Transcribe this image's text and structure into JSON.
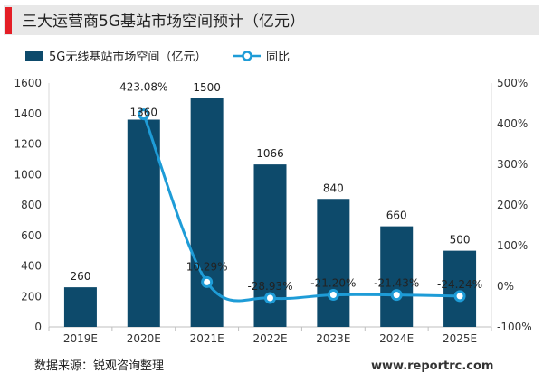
{
  "chart_data": {
    "type": "bar",
    "title": "三大运营商5G基站市场空间预计（亿元）",
    "categories": [
      "2019E",
      "2020E",
      "2021E",
      "2022E",
      "2023E",
      "2024E",
      "2025E"
    ],
    "series": [
      {
        "name": "5G无线基站市场空间（亿元）",
        "type": "bar",
        "axis": "left",
        "values": [
          260,
          1360,
          1500,
          1066,
          840,
          660,
          500
        ],
        "labels": [
          "260",
          "1360",
          "1500",
          "1066",
          "840",
          "660",
          "500"
        ]
      },
      {
        "name": "同比",
        "type": "line",
        "axis": "right",
        "values": [
          null,
          423.08,
          10.29,
          -28.93,
          -21.2,
          -21.43,
          -24.24
        ],
        "labels": [
          "",
          "423.08%",
          "10.29%",
          "-28.93%",
          "-21.20%",
          "-21.43%",
          "-24.24%"
        ]
      }
    ],
    "y_left": {
      "min": 0,
      "max": 1600,
      "ticks": [
        "0",
        "200",
        "400",
        "600",
        "800",
        "1000",
        "1200",
        "1400",
        "1600"
      ]
    },
    "y_right": {
      "min": -100,
      "max": 500,
      "ticks": [
        "-100%",
        "0%",
        "100%",
        "200%",
        "300%",
        "400%",
        "500%"
      ]
    },
    "legend_position": "top-left",
    "grid": false,
    "colors": {
      "bar": "#0d4a6b",
      "line": "#1e9cd7",
      "accent": "#e41e26",
      "header_bg": "#e8e8e8"
    }
  },
  "footer": {
    "source": "数据来源：锐观咨询整理",
    "website": "www.reportrc.com"
  }
}
